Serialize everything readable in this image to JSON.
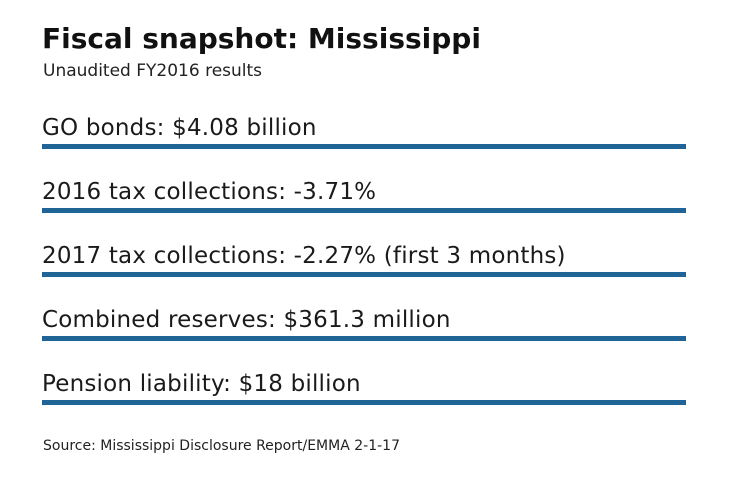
{
  "header": {
    "title": "Fiscal snapshot: Mississippi",
    "subtitle": "Unaudited FY2016 results"
  },
  "facts": [
    "GO bonds: $4.08 billion",
    "2016 tax collections: -3.71%",
    "2017 tax collections: -2.27% (first 3 months)",
    "Combined reserves: $361.3 million",
    "Pension liability: $18 billion"
  ],
  "footer": {
    "source": "Source: Mississippi Disclosure Report/EMMA 2-1-17"
  },
  "colors": {
    "rule": "#1f6497",
    "text": "#1a1a1a",
    "background": "#ffffff"
  }
}
